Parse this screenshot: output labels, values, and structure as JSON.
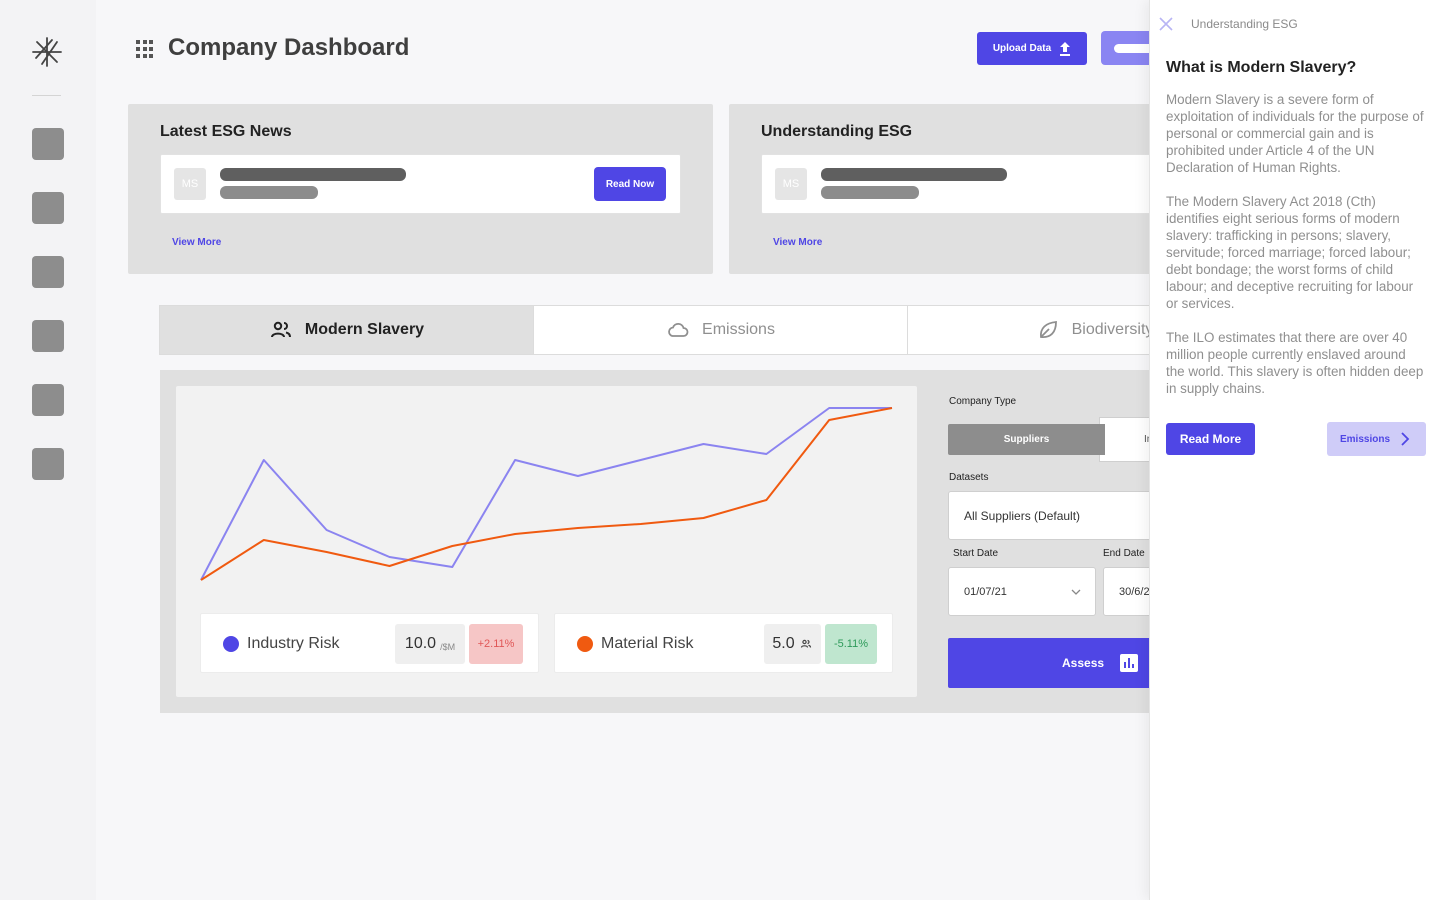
{
  "header": {
    "title": "Company Dashboard",
    "upload_label": "Upload Data"
  },
  "news_card": {
    "title": "Latest ESG News",
    "avatar": "MS",
    "read_label": "Read Now",
    "view_more": "View More"
  },
  "esg_card": {
    "title": "Understanding ESG",
    "avatar": "MS",
    "view_more": "View More"
  },
  "tabs": [
    {
      "label": "Modern Slavery",
      "icon": "people-icon",
      "active": true
    },
    {
      "label": "Emissions",
      "icon": "cloud-icon",
      "active": false
    },
    {
      "label": "Biodiversity",
      "icon": "leaf-icon",
      "active": false
    }
  ],
  "metrics": {
    "industry": {
      "label": "Industry Risk",
      "value": "10.0",
      "unit": "/$M",
      "change": "+2.11%",
      "color": "#4f46e5"
    },
    "material": {
      "label": "Material Risk",
      "value": "5.0",
      "change": "-5.11%",
      "color": "#f05a10"
    }
  },
  "chart_data": {
    "type": "line",
    "x": [
      0,
      1,
      2,
      3,
      4,
      5,
      6,
      7,
      8,
      9,
      10,
      11
    ],
    "series": [
      {
        "color": "#8b84f0",
        "values": [
          0,
          60,
          25,
          11.5,
          6.5,
          60,
          52,
          60,
          68,
          63,
          86,
          86
        ]
      },
      {
        "color": "#f05a10",
        "values": [
          0,
          20,
          14,
          7,
          17,
          23,
          26,
          28,
          31,
          40,
          80,
          86
        ]
      }
    ],
    "grid": false
  },
  "form": {
    "company_type_label": "Company Type",
    "company_type_selected": "Suppliers",
    "company_type_other": "In",
    "datasets_label": "Datasets",
    "dataset_value": "All Suppliers (Default)",
    "start_date_label": "Start Date",
    "start_date": "01/07/21",
    "end_date_label": "End Date",
    "end_date": "30/6/2",
    "assess_label": "Assess"
  },
  "info_panel": {
    "header": "Understanding ESG",
    "title": "What is Modern Slavery?",
    "paragraphs": [
      "Modern Slavery is a severe form of exploitation of individuals for the purpose of personal or commercial gain and is prohibited under Article 4 of the UN Declaration of Human Rights.",
      "The Modern Slavery Act 2018 (Cth) identifies eight serious forms of modern slavery: trafficking in persons; slavery, servitude; forced marriage; forced labour; debt bondage; the worst forms of child labour; and deceptive recruiting for labour or services.",
      "The ILO estimates that there are over 40 million people currently enslaved around the world. This slavery is often hidden deep in supply chains."
    ],
    "read_more": "Read More",
    "next_label": "Emissions"
  },
  "colors": {
    "accent": "#4f46e5",
    "accent_light": "#cfccf8",
    "up_change_bg": "#f6c6c6",
    "down_change_bg": "#bfe6cf"
  }
}
